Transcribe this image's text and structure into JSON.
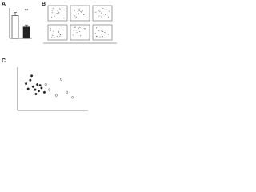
{
  "chart_data": [
    {
      "type": "bar",
      "panel": "A",
      "categories": [
        null,
        null
      ],
      "values": [
        0.9,
        0.45
      ],
      "errors": [
        0.12,
        0.08
      ],
      "colors": [
        "#ffffff",
        "#222222"
      ],
      "ylim": [
        0,
        1.2
      ],
      "annotation": "**"
    },
    {
      "type": "flow",
      "panel": "B"
    },
    {
      "type": "scatter",
      "panel": "C",
      "xlim": [
        0,
        100
      ],
      "ylim": [
        0,
        100
      ],
      "series": [
        {
          "color": "#222222",
          "x": [
            12,
            18,
            22,
            25,
            28,
            30,
            34,
            38,
            20,
            15,
            26,
            32
          ],
          "y": [
            62,
            70,
            55,
            48,
            60,
            45,
            52,
            42,
            80,
            50,
            38,
            58
          ]
        },
        {
          "color": "#ffffff",
          "x": [
            40,
            45,
            62,
            70,
            78,
            55
          ],
          "y": [
            60,
            48,
            72,
            42,
            30,
            35
          ]
        }
      ]
    }
  ]
}
